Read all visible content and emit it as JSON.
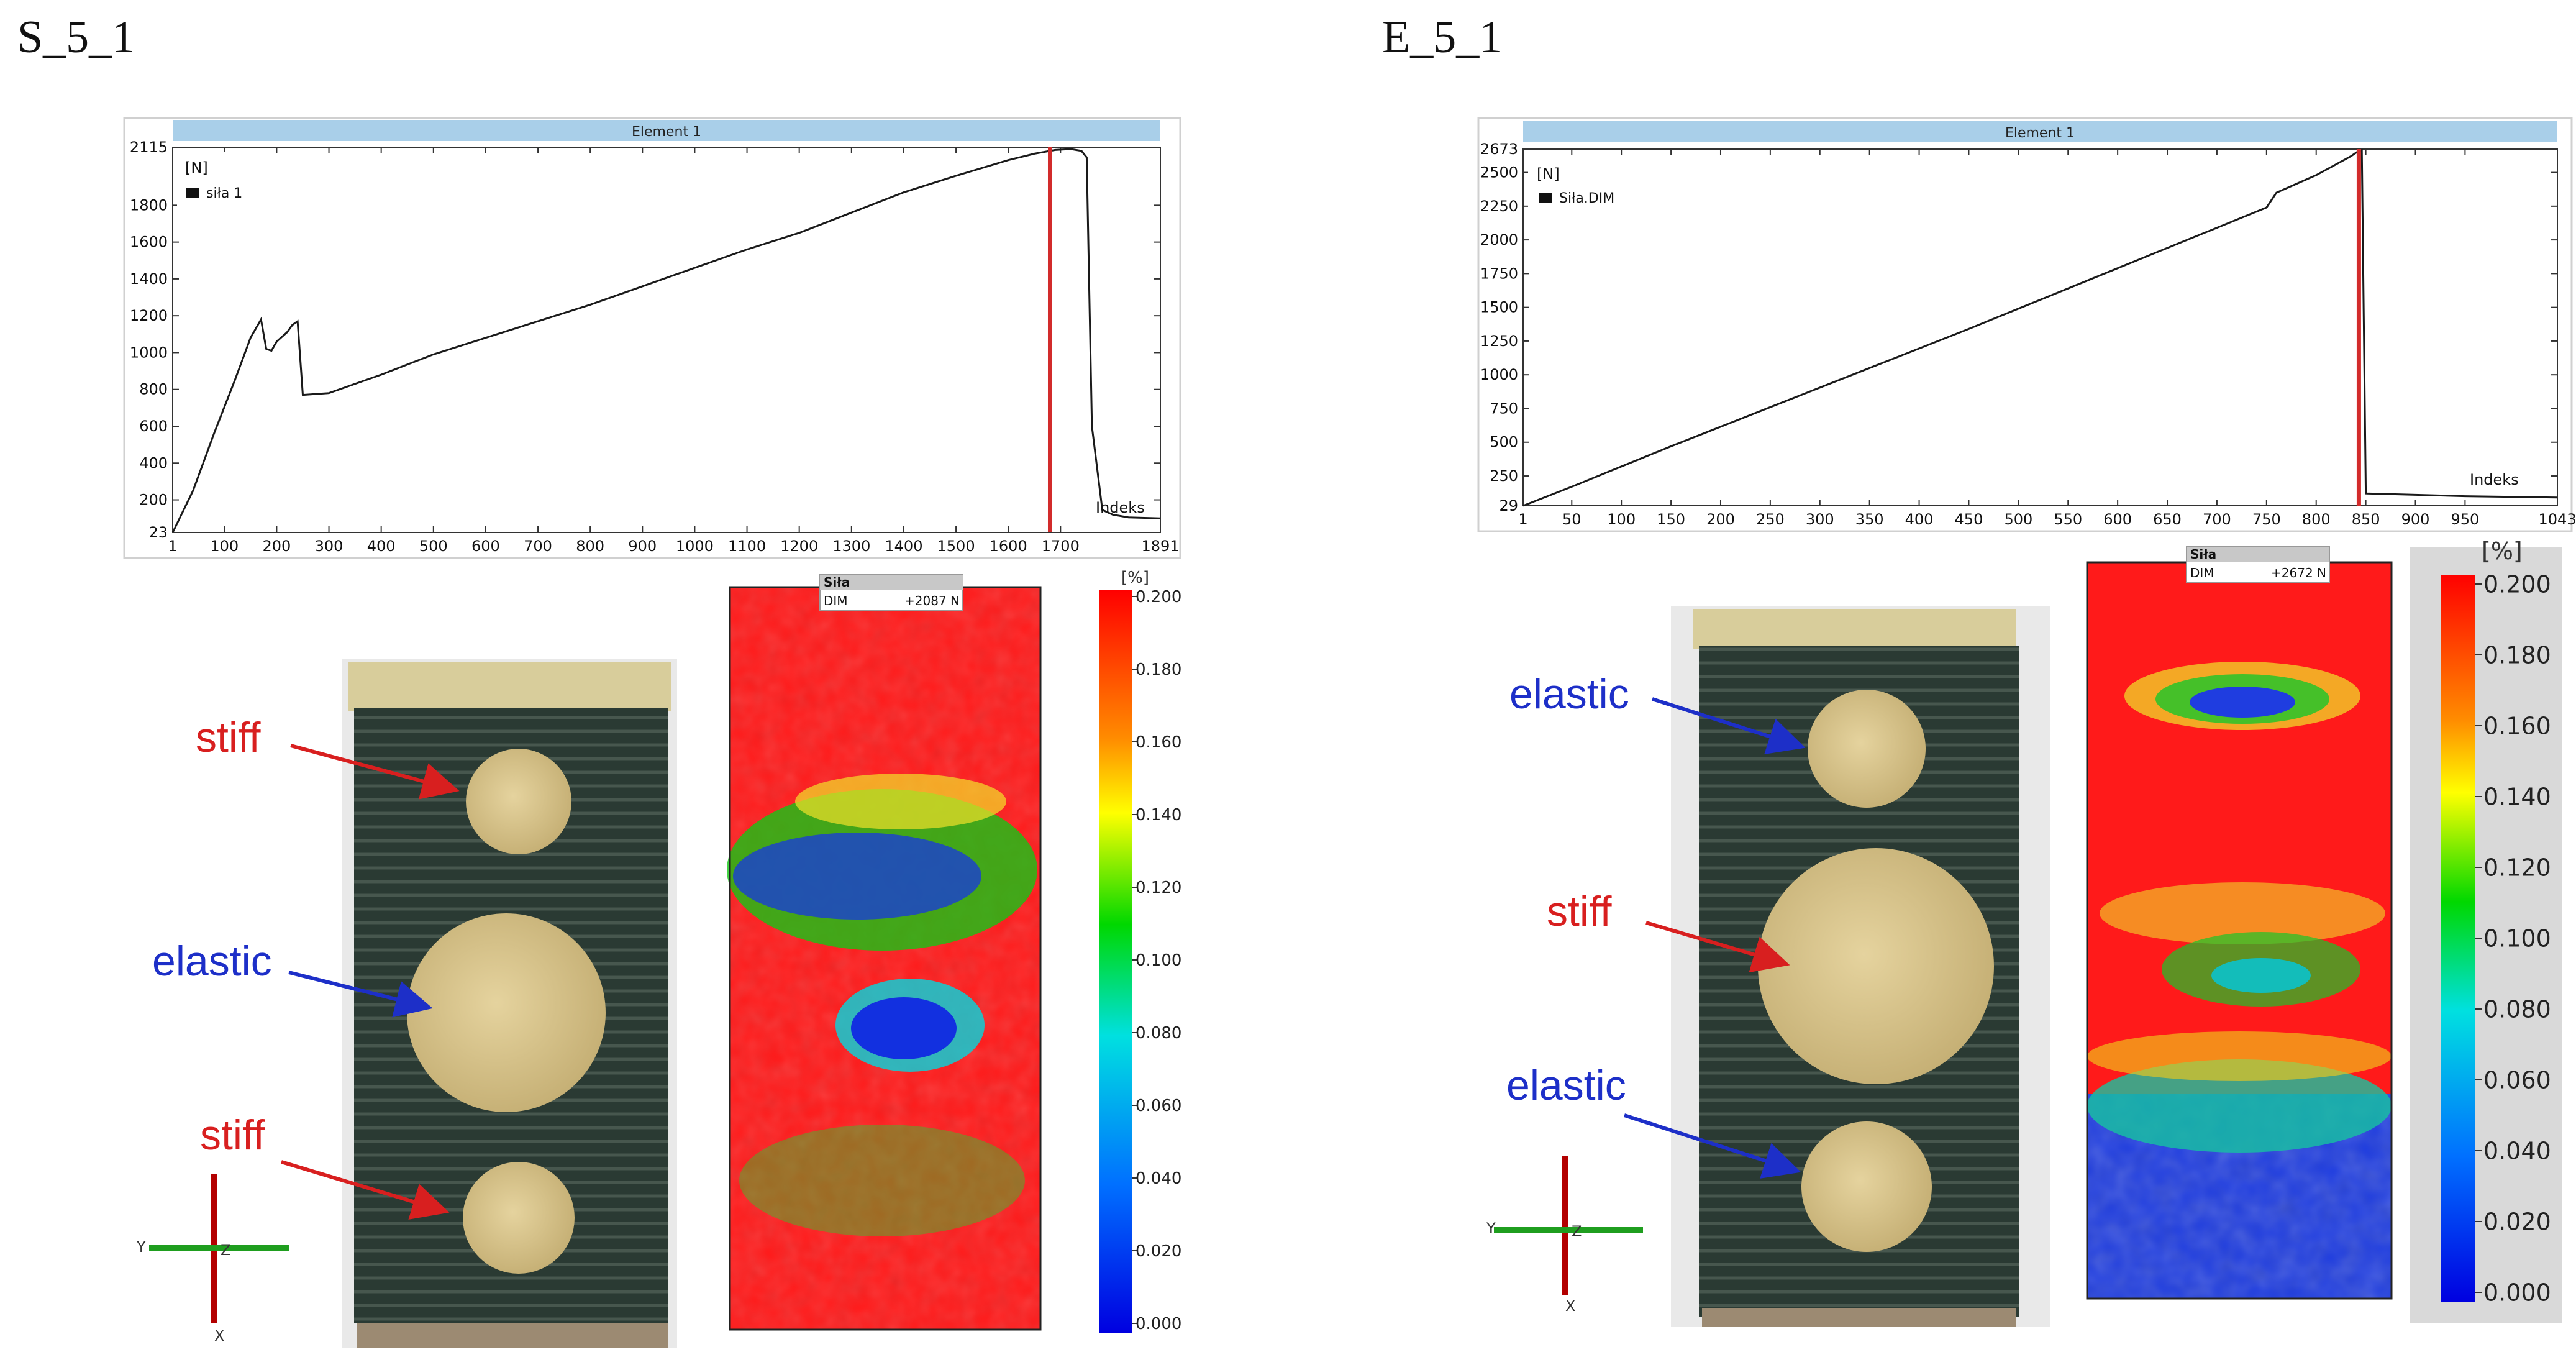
{
  "figure": {
    "left_title": "S_5_1",
    "right_title": "E_5_1"
  },
  "chart_data": [
    {
      "type": "line",
      "title": "Element 1",
      "ylabel": "[N]",
      "xlabel": "Indeks",
      "legend": "siła 1",
      "xlim": [
        1,
        1891
      ],
      "ylim": [
        23,
        2115
      ],
      "x_ticks": [
        "1",
        "100",
        "200",
        "300",
        "400",
        "500",
        "600",
        "700",
        "800",
        "900",
        "1000",
        "1100",
        "1200",
        "1300",
        "1400",
        "1500",
        "1600",
        "1700",
        "1891"
      ],
      "y_ticks": [
        "23",
        "200",
        "400",
        "600",
        "800",
        "1000",
        "1200",
        "1400",
        "1600",
        "1800",
        "2115"
      ],
      "x_tick_values": [
        1,
        100,
        200,
        300,
        400,
        500,
        600,
        700,
        800,
        900,
        1000,
        1100,
        1200,
        1300,
        1400,
        1500,
        1600,
        1700,
        1891
      ],
      "y_tick_values": [
        23,
        200,
        400,
        600,
        800,
        1000,
        1200,
        1400,
        1600,
        1800,
        2115
      ],
      "marker_x": 1680,
      "x": [
        1,
        40,
        80,
        120,
        150,
        170,
        180,
        190,
        200,
        220,
        230,
        240,
        250,
        300,
        400,
        500,
        600,
        700,
        800,
        900,
        1000,
        1100,
        1200,
        1300,
        1400,
        1500,
        1600,
        1650,
        1690,
        1720,
        1740,
        1750,
        1760,
        1780,
        1800,
        1830,
        1891
      ],
      "y": [
        23,
        250,
        560,
        850,
        1080,
        1180,
        1020,
        1010,
        1060,
        1110,
        1150,
        1170,
        770,
        780,
        880,
        990,
        1080,
        1170,
        1260,
        1360,
        1460,
        1560,
        1650,
        1760,
        1870,
        1960,
        2045,
        2080,
        2100,
        2105,
        2095,
        2060,
        600,
        145,
        120,
        105,
        100
      ]
    },
    {
      "type": "line",
      "title": "Element 1",
      "ylabel": "[N]",
      "xlabel": "Indeks",
      "legend": "Siła.DIM",
      "xlim": [
        1,
        1043
      ],
      "ylim": [
        29,
        2673
      ],
      "x_ticks": [
        "1",
        "50",
        "100",
        "150",
        "200",
        "250",
        "300",
        "350",
        "400",
        "450",
        "500",
        "550",
        "600",
        "650",
        "700",
        "750",
        "800",
        "850",
        "900",
        "950",
        "1043"
      ],
      "y_ticks": [
        "29",
        "250",
        "500",
        "750",
        "1000",
        "1250",
        "1500",
        "1750",
        "2000",
        "2250",
        "2500",
        "2673"
      ],
      "x_tick_values": [
        1,
        50,
        100,
        150,
        200,
        250,
        300,
        350,
        400,
        450,
        500,
        550,
        600,
        650,
        700,
        750,
        800,
        850,
        900,
        950,
        1043
      ],
      "y_tick_values": [
        29,
        250,
        500,
        750,
        1000,
        1250,
        1500,
        1750,
        2000,
        2250,
        2500,
        2673
      ],
      "marker_x": 843,
      "x": [
        1,
        50,
        100,
        150,
        200,
        250,
        300,
        350,
        400,
        450,
        500,
        550,
        600,
        650,
        700,
        750,
        760,
        800,
        835,
        843,
        846,
        850,
        900,
        950,
        1000,
        1043
      ],
      "y": [
        29,
        170,
        320,
        470,
        615,
        760,
        905,
        1050,
        1195,
        1340,
        1490,
        1640,
        1790,
        1940,
        2090,
        2240,
        2350,
        2480,
        2620,
        2660,
        2665,
        120,
        110,
        100,
        95,
        90
      ]
    }
  ],
  "specimens": {
    "left": {
      "labels": [
        "stiff",
        "elastic",
        "stiff"
      ],
      "axes": {
        "y": "Y",
        "z": "Z",
        "x": "X"
      },
      "dic_header": {
        "title": "Siła",
        "channel": "DIM",
        "value": "+2087 N"
      },
      "colorbar": {
        "unit": "[%]",
        "ticks": [
          "0.200",
          "0.180",
          "0.160",
          "0.140",
          "0.120",
          "0.100",
          "0.080",
          "0.060",
          "0.040",
          "0.020",
          "0.000"
        ]
      }
    },
    "right": {
      "labels": [
        "elastic",
        "stiff",
        "elastic"
      ],
      "axes": {
        "y": "Y",
        "z": "Z",
        "x": "X"
      },
      "dic_header": {
        "title": "Siła",
        "channel": "DIM",
        "value": "+2672 N"
      },
      "colorbar": {
        "unit": "[%]",
        "ticks": [
          "0.200",
          "0.180",
          "0.160",
          "0.140",
          "0.120",
          "0.100",
          "0.080",
          "0.060",
          "0.040",
          "0.020",
          "0.000"
        ]
      }
    }
  },
  "colors": {
    "header_bar": "#a9cfe9",
    "line": "#1a1a1a",
    "marker": "#d22b2b",
    "stiff": "#d81f1f",
    "elastic": "#1d2fc8"
  }
}
